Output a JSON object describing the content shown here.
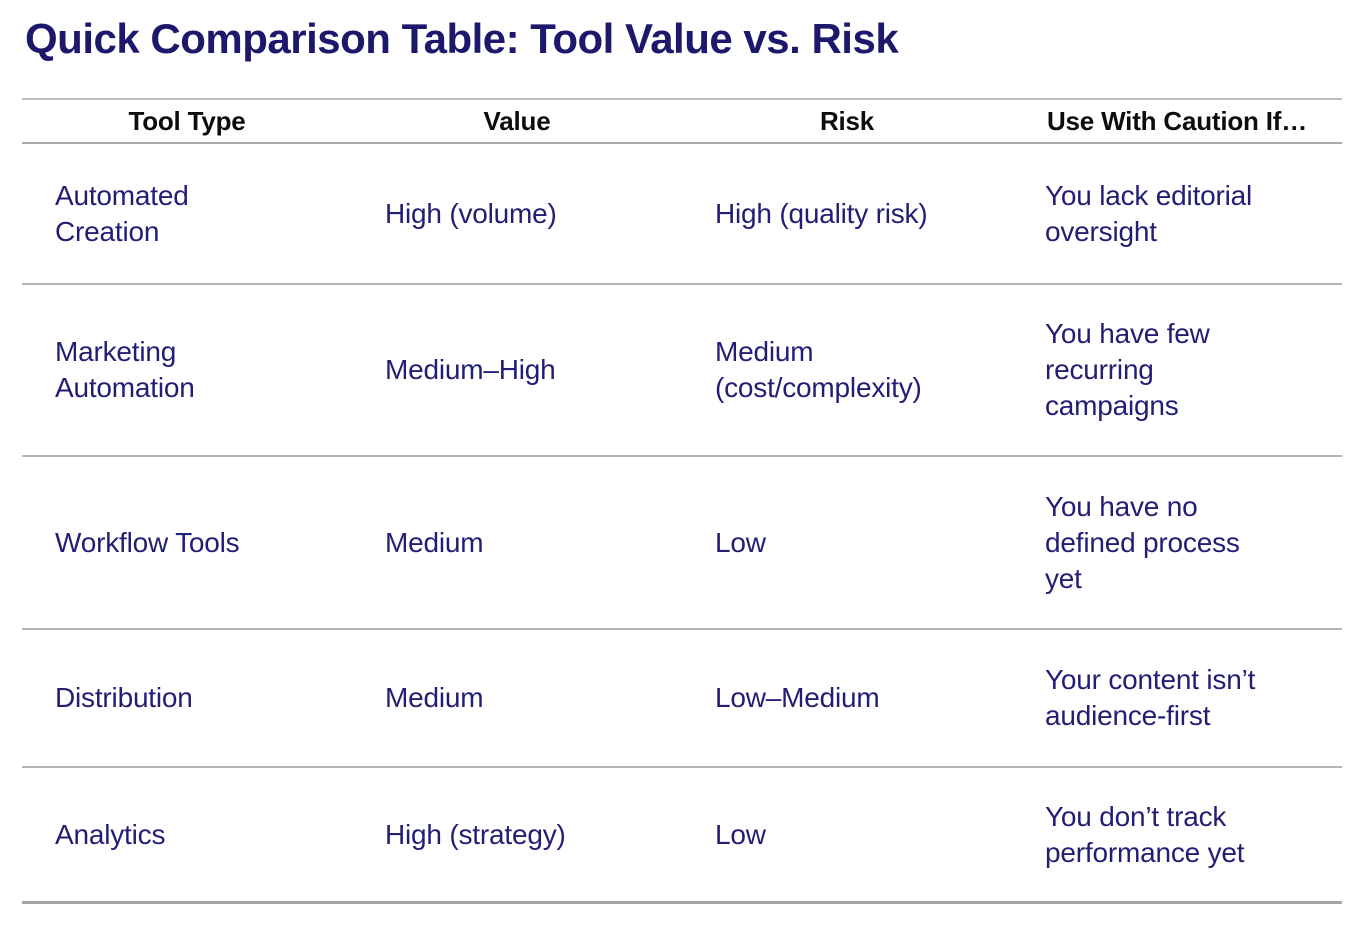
{
  "page": {
    "title": "Quick Comparison Table: Tool Value vs. Risk"
  },
  "colors": {
    "title_text": "#1c186b",
    "body_text": "#211e74",
    "header_text": "#0d0d0d",
    "divider_gray": "#b3b3b3",
    "bottom_border_gray": "#a4a4a4",
    "background": "#ffffff"
  },
  "chart_data": {
    "type": "table",
    "title": "Quick Comparison Table: Tool Value vs. Risk",
    "columns": [
      "Tool Type",
      "Value",
      "Risk",
      "Use With Caution If…"
    ],
    "rows": [
      [
        "Automated Creation",
        "High (volume)",
        "High (quality risk)",
        "You lack editorial oversight"
      ],
      [
        "Marketing Automation",
        "Medium–High",
        "Medium (cost/complexity)",
        "You have few recurring campaigns"
      ],
      [
        "Workflow Tools",
        "Medium",
        "Low",
        "You have no defined process yet"
      ],
      [
        "Distribution",
        "Medium",
        "Low–Medium",
        "Your content isn’t audience-first"
      ],
      [
        "Analytics",
        "High (strategy)",
        "Low",
        "You don’t track performance yet"
      ]
    ]
  },
  "table": {
    "columns": [
      "Tool Type",
      "Value",
      "Risk",
      "Use With Caution If…"
    ],
    "rows": [
      [
        "Automated\nCreation",
        "High (volume)",
        "High (quality risk)",
        "You lack editorial\noversight"
      ],
      [
        "Marketing\nAutomation",
        "Medium–High",
        "Medium\n(cost/complexity)",
        "You have few\nrecurring\ncampaigns"
      ],
      [
        "Workflow Tools",
        "Medium",
        "Low",
        "You have no\ndefined process\nyet"
      ],
      [
        "Distribution",
        "Medium",
        "Low–Medium",
        "Your content isn’t\naudience-first"
      ],
      [
        "Analytics",
        "High (strategy)",
        "Low",
        "You don’t track\nperformance yet"
      ]
    ]
  }
}
